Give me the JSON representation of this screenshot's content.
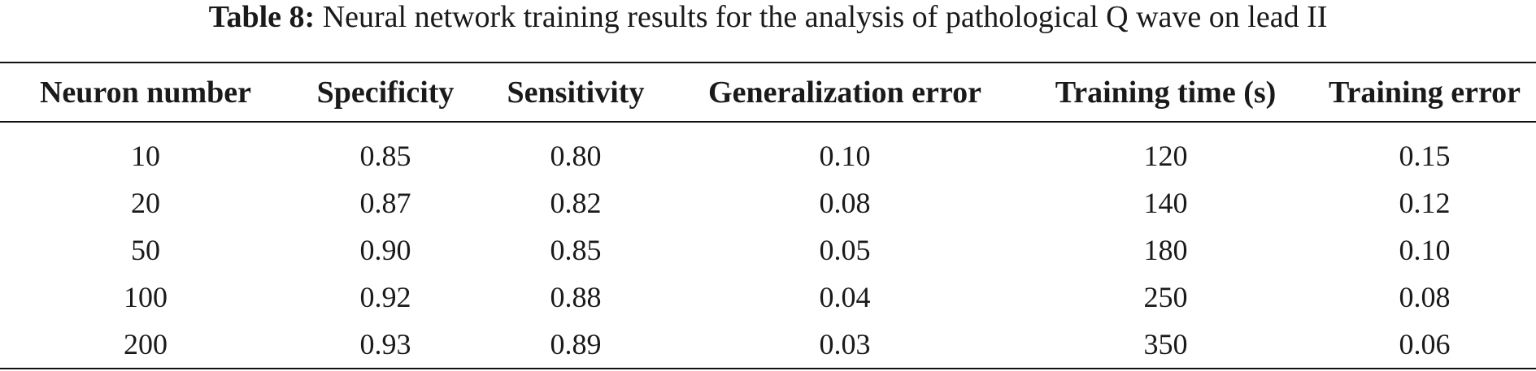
{
  "caption": {
    "label": "Table 8:",
    "text": "Neural network training results for the analysis of pathological Q wave on lead II"
  },
  "table": {
    "headers": [
      "Neuron number",
      "Specificity",
      "Sensitivity",
      "Generalization error",
      "Training time (s)",
      "Training error"
    ],
    "rows": [
      [
        "10",
        "0.85",
        "0.80",
        "0.10",
        "120",
        "0.15"
      ],
      [
        "20",
        "0.87",
        "0.82",
        "0.08",
        "140",
        "0.12"
      ],
      [
        "50",
        "0.90",
        "0.85",
        "0.05",
        "180",
        "0.10"
      ],
      [
        "100",
        "0.92",
        "0.88",
        "0.04",
        "250",
        "0.08"
      ],
      [
        "200",
        "0.93",
        "0.89",
        "0.03",
        "350",
        "0.06"
      ]
    ]
  }
}
